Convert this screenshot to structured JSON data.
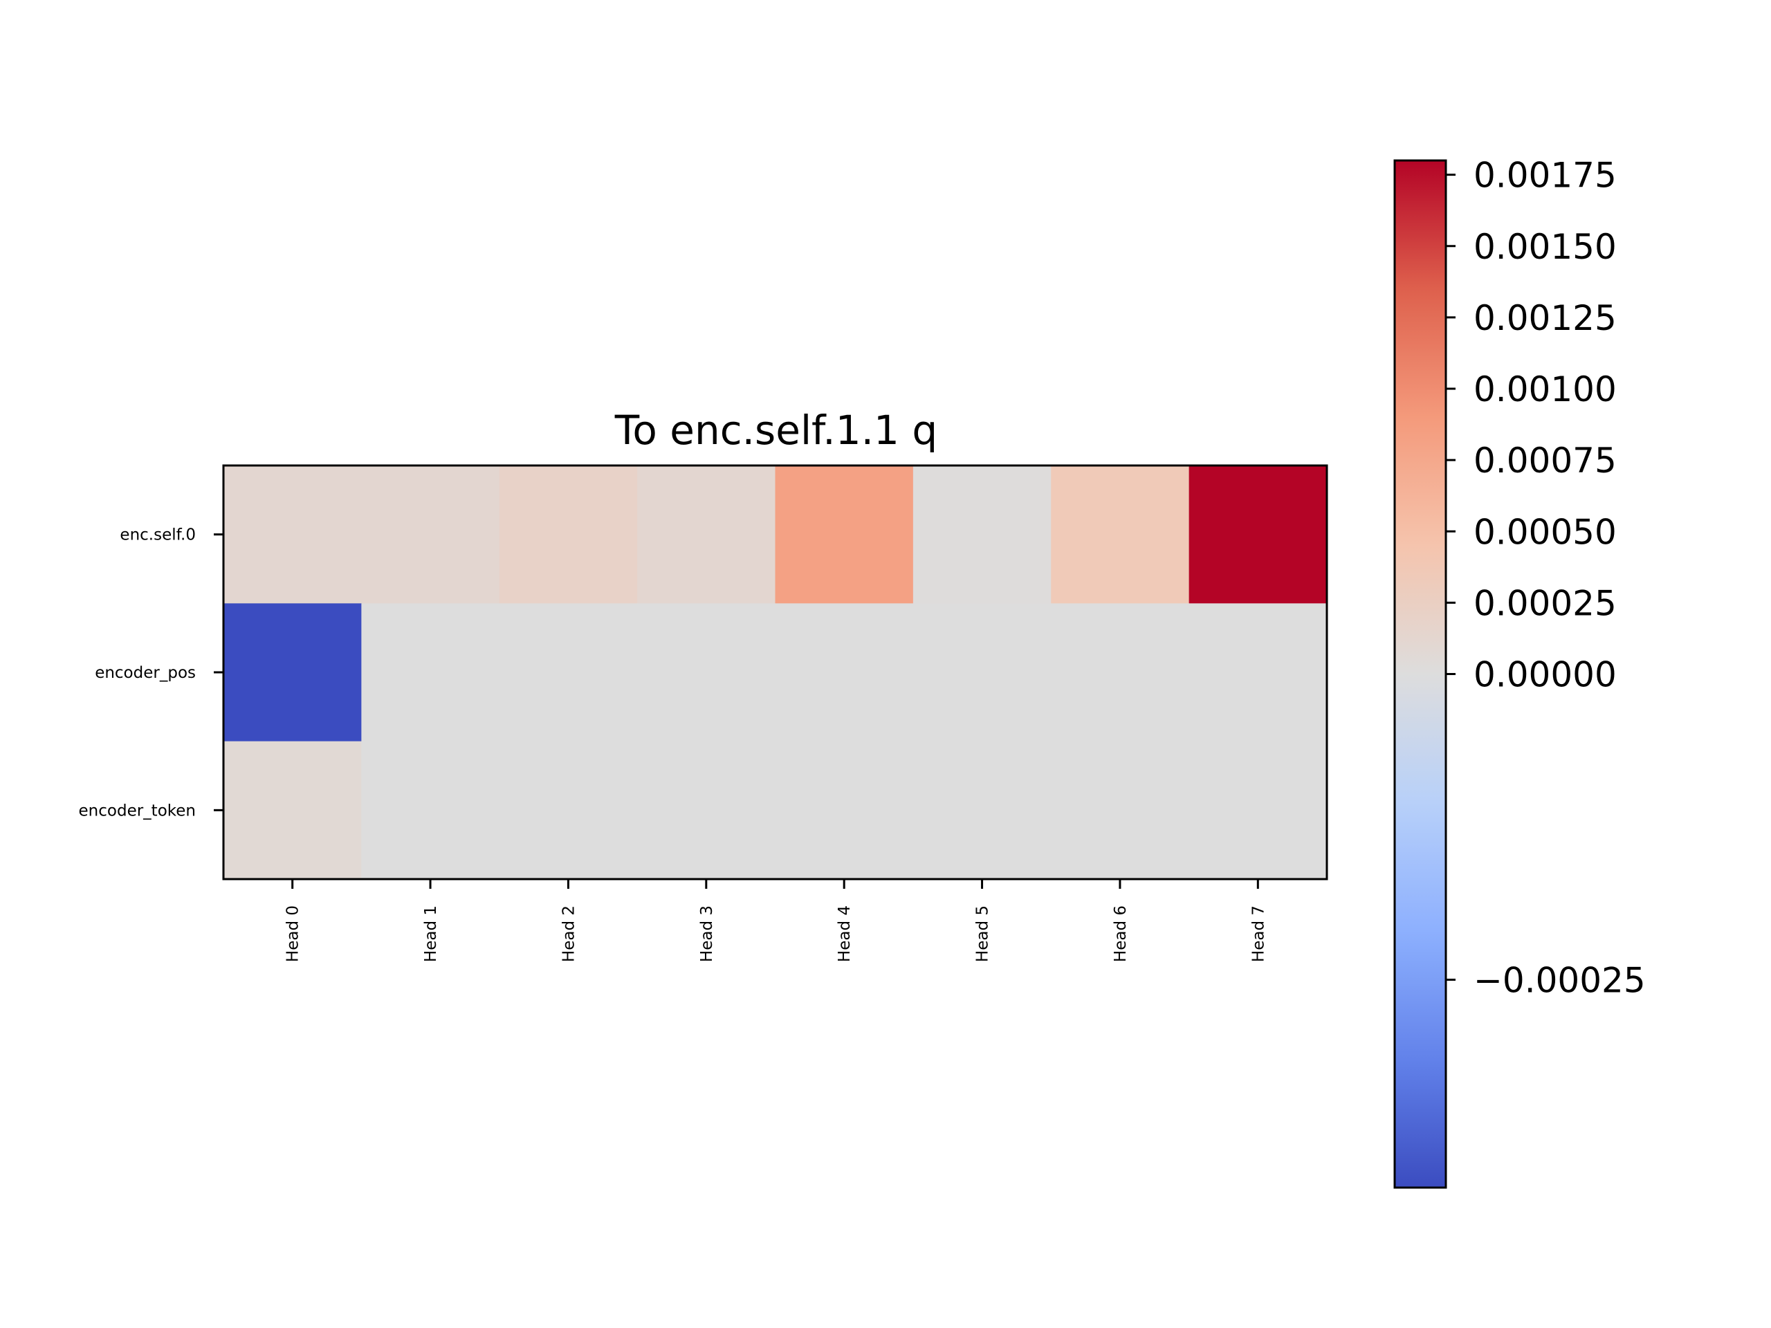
{
  "chart_data": {
    "type": "heatmap",
    "title": "To enc.self.1.1 q",
    "xlabel": "",
    "ylabel": "",
    "x_categories": [
      "Head 0",
      "Head 1",
      "Head 2",
      "Head 3",
      "Head 4",
      "Head 5",
      "Head 6",
      "Head 7"
    ],
    "y_categories": [
      "enc.self.0",
      "encoder_pos",
      "encoder_token"
    ],
    "values": [
      [
        0.00012,
        0.00012,
        0.0002,
        0.00012,
        0.00082,
        2e-05,
        0.00035,
        0.0018
      ],
      [
        -0.00042,
        0.0,
        0.0,
        0.0,
        0.0,
        0.0,
        0.0,
        0.0
      ],
      [
        8e-05,
        0.0,
        0.0,
        0.0,
        0.0,
        0.0,
        0.0,
        0.0
      ]
    ],
    "colormap": "coolwarm",
    "color_range": [
      -0.00042,
      0.0018
    ],
    "colorbar_ticks": [
      0.00175,
      0.0015,
      0.00125,
      0.001,
      0.00075,
      0.0005,
      0.00025,
      0.0,
      -0.00025
    ],
    "colorbar_tick_labels": [
      "0.00175",
      "0.00150",
      "0.00125",
      "0.00100",
      "0.00075",
      "0.00050",
      "0.00025",
      "0.00000",
      "−0.00025"
    ],
    "colorbar_note": "two-slope normalization centered at 0.00000",
    "colors": {
      "low": "#3b4cc0",
      "center": "#dddddd",
      "high": "#b40426"
    },
    "grid": false
  }
}
